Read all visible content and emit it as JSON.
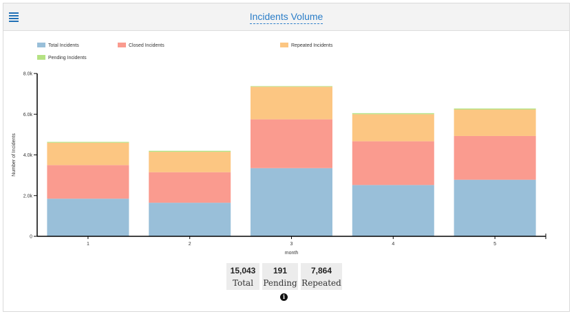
{
  "header": {
    "title": "Incidents Volume"
  },
  "colors": {
    "total": "#99bfd9",
    "closed": "#fa9b8f",
    "repeated": "#fcc682",
    "pending": "#b5e283",
    "accent": "#2a7dc8"
  },
  "chart_data": {
    "type": "bar",
    "stacked": true,
    "categories": [
      "1",
      "2",
      "3",
      "4",
      "5"
    ],
    "series": [
      {
        "name": "Total Incidents",
        "values": [
          1850,
          1650,
          3350,
          2520,
          2780
        ]
      },
      {
        "name": "Closed Incidents",
        "values": [
          1650,
          1500,
          2400,
          2150,
          2150
        ]
      },
      {
        "name": "Repeated Incidents",
        "values": [
          1100,
          1000,
          1600,
          1330,
          1300
        ]
      },
      {
        "name": "Pending Incidents",
        "values": [
          40,
          50,
          30,
          50,
          50
        ]
      }
    ],
    "xlabel": "month",
    "ylabel": "Number of Incidents",
    "ylim": [
      0,
      8000
    ],
    "yticks": [
      0,
      2000,
      4000,
      6000,
      8000
    ],
    "ytick_labels": [
      "0",
      "2.0k",
      "4.0k",
      "6.0k",
      "8.0k"
    ],
    "legend_position": "top-left"
  },
  "stats": [
    {
      "value": "15,043",
      "label": "Total"
    },
    {
      "value": "191",
      "label": "Pending"
    },
    {
      "value": "7,864",
      "label": "Repeated"
    }
  ],
  "info_icon": "i"
}
